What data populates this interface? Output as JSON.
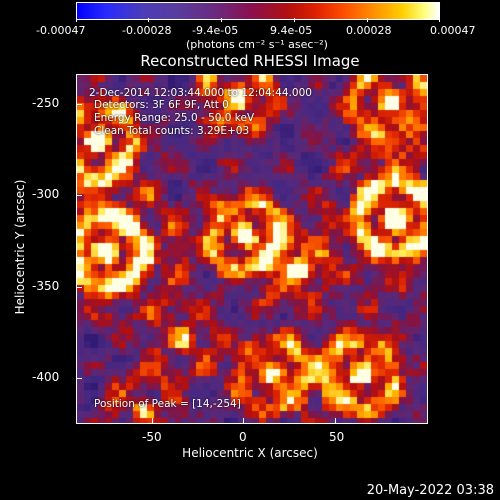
{
  "colorbar": {
    "ticks": [
      "-0.00047",
      "-0.00028",
      "-9.4e-05",
      "9.4e-05",
      "0.00028",
      "0.00047"
    ],
    "unit": "(photons cm⁻² s⁻¹ asec⁻²)"
  },
  "title": "Reconstructed RHESSI Image",
  "info": {
    "time": "2-Dec-2014 12:03:44.000 to 12:04:44.000",
    "detectors": "Detectors: 3F 6F 9F, Att 0",
    "energy": "Energy Range: 25.0 - 50.0 keV",
    "clean": "Clean    Total counts: 3.29E+03",
    "peak": "Position of Peak = [14,-254]"
  },
  "axes": {
    "xlabel": "Heliocentric X (arcsec)",
    "ylabel": "Heliocentric Y (arcsec)",
    "xticks": [
      "-50",
      "0",
      "50"
    ],
    "yticks": [
      "-250",
      "-300",
      "-350",
      "-400"
    ]
  },
  "timestamp": "20-May-2022 03:38",
  "colors": {
    "background": "#000000",
    "text": "#ffffff"
  }
}
